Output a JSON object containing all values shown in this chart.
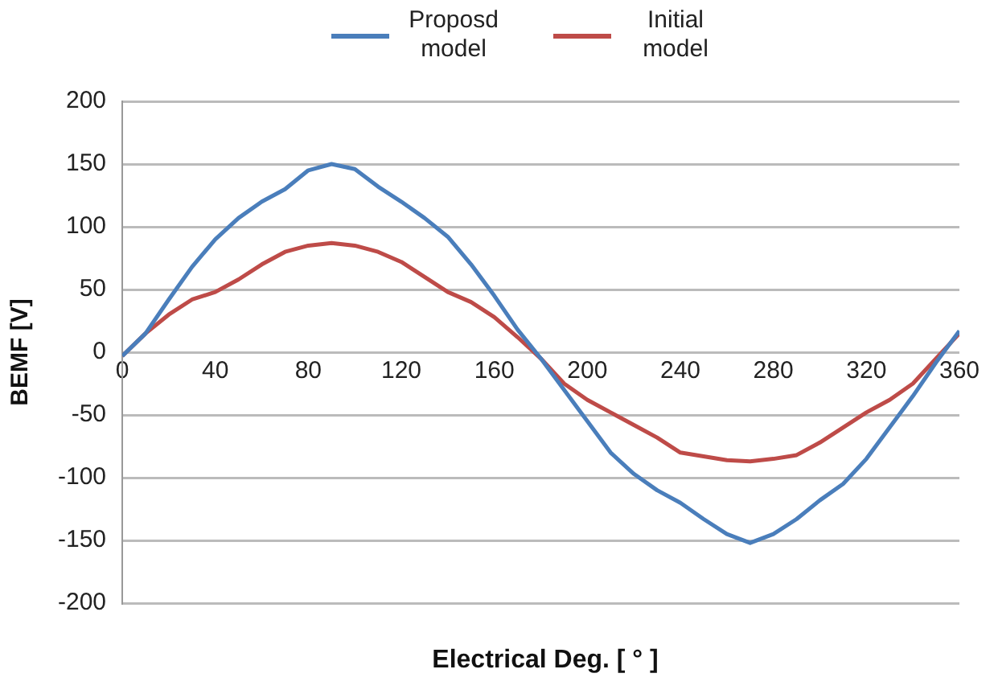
{
  "chart_data": {
    "type": "line",
    "xlabel": "Electrical Deg. [ ° ]",
    "ylabel": "BEMF [V]",
    "x": [
      0,
      10,
      20,
      30,
      40,
      50,
      60,
      70,
      80,
      90,
      100,
      110,
      120,
      130,
      140,
      150,
      160,
      170,
      180,
      190,
      200,
      210,
      220,
      230,
      240,
      250,
      260,
      270,
      280,
      290,
      300,
      310,
      320,
      330,
      340,
      350,
      360
    ],
    "series": [
      {
        "name": "Proposd model",
        "color": "#4a7ebb",
        "values": [
          -3,
          15,
          42,
          68,
          90,
          107,
          120,
          130,
          145,
          150,
          146,
          132,
          120,
          107,
          92,
          70,
          45,
          18,
          -5,
          -30,
          -55,
          -80,
          -97,
          -110,
          -120,
          -133,
          -145,
          -152,
          -145,
          -133,
          -118,
          -105,
          -85,
          -60,
          -35,
          -8,
          17
        ]
      },
      {
        "name": "Initial model",
        "color": "#be4b48",
        "values": [
          -3,
          15,
          30,
          42,
          48,
          58,
          70,
          80,
          85,
          87,
          85,
          80,
          72,
          60,
          48,
          40,
          28,
          12,
          -5,
          -25,
          -38,
          -48,
          -58,
          -68,
          -80,
          -83,
          -86,
          -87,
          -85,
          -82,
          -72,
          -60,
          -48,
          -38,
          -25,
          -5,
          15
        ]
      }
    ],
    "xlim": [
      0,
      360
    ],
    "xticks": [
      0,
      40,
      80,
      120,
      160,
      200,
      240,
      280,
      320,
      360
    ],
    "ylim": [
      -200,
      200
    ],
    "yticks": [
      -200,
      -150,
      -100,
      -50,
      0,
      50,
      100,
      150,
      200
    ],
    "grid": "y",
    "legend": "top",
    "marker": "none",
    "line_style": "solid"
  }
}
